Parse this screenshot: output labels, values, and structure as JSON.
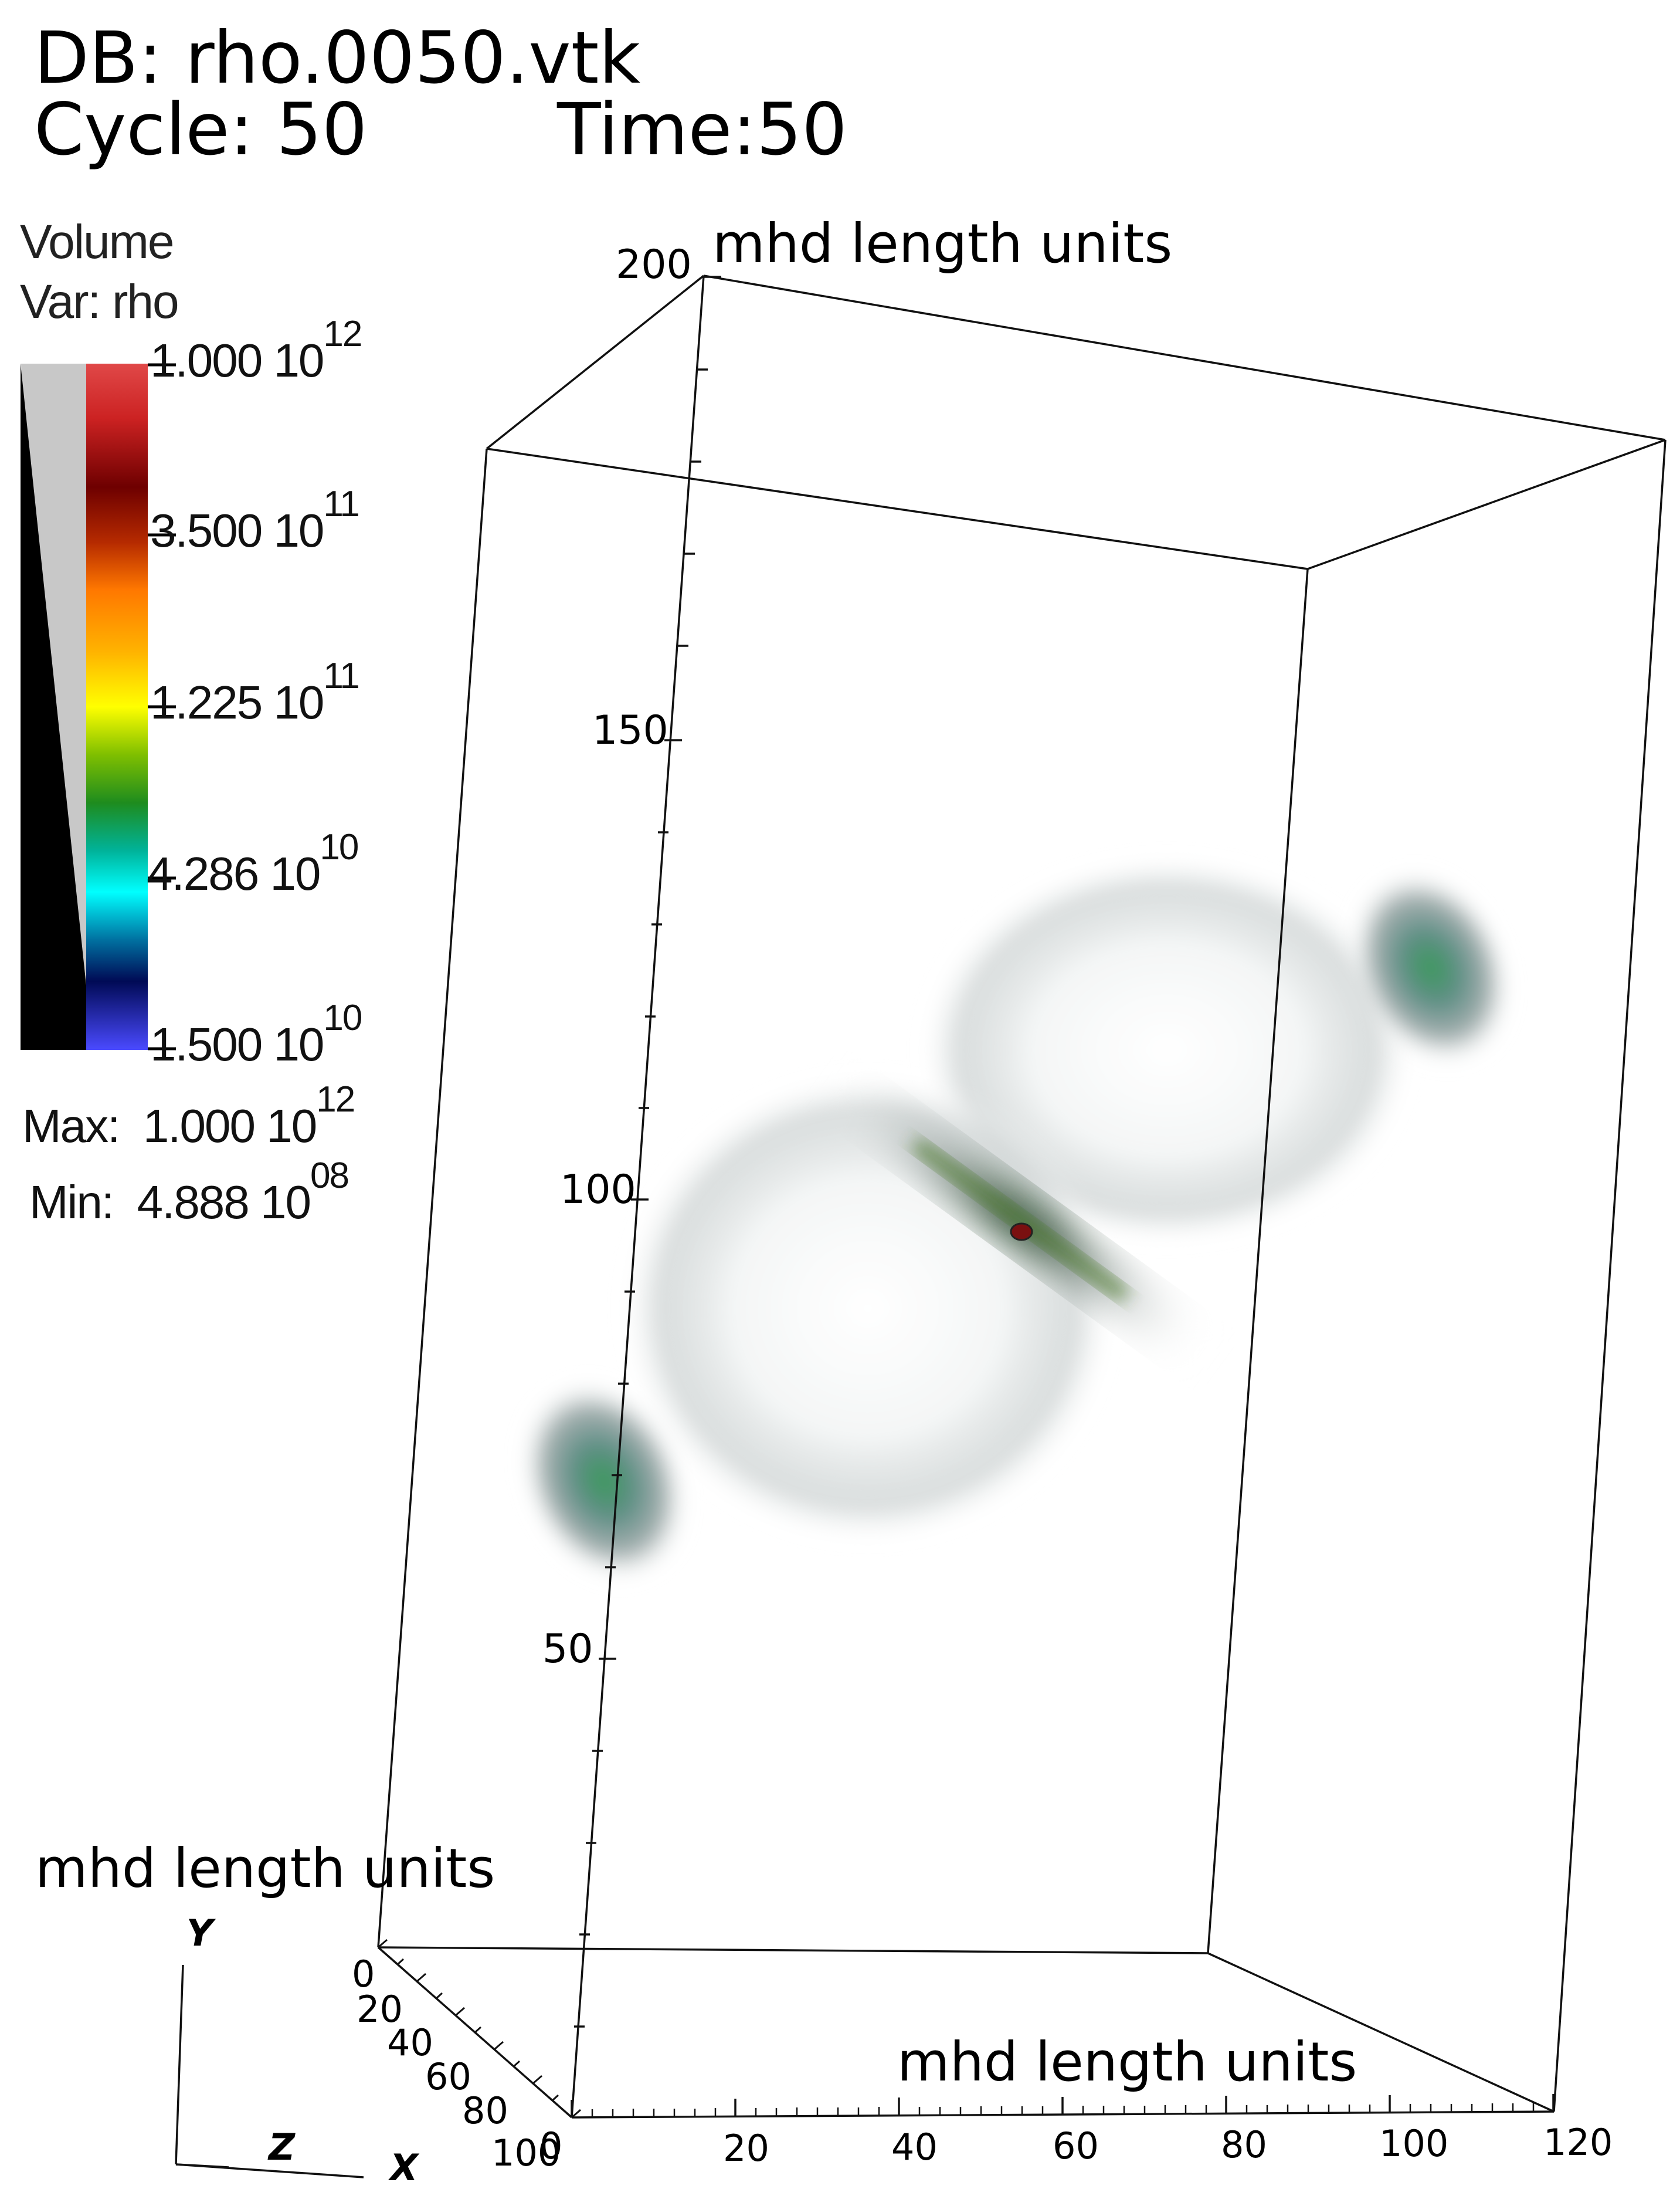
{
  "header": {
    "db_line": "DB: rho.0050.vtk",
    "cycle_label": "Cycle: 50",
    "time_label": "Time:50"
  },
  "legend": {
    "plot_type": "Volume",
    "var_label": "Var: rho",
    "ticks": [
      {
        "mant": "1.000",
        "base": "10",
        "exp": "12"
      },
      {
        "mant": "3.500",
        "base": "10",
        "exp": "11"
      },
      {
        "mant": "1.225",
        "base": "10",
        "exp": "11"
      },
      {
        "mant": "4.286",
        "base": "10",
        "exp": "10"
      },
      {
        "mant": "1.500",
        "base": "10",
        "exp": "10"
      }
    ],
    "max_label": "Max:",
    "max_mant": "1.000",
    "max_base": "10",
    "max_exp": "12",
    "min_label": "Min:",
    "min_mant": "4.888",
    "min_base": "10",
    "min_exp": "08",
    "colors": [
      "#ff3b3b",
      "#7a0000",
      "#ff7f00",
      "#ffff00",
      "#2e8b00",
      "#00ffff",
      "#001a66",
      "#4040ff"
    ]
  },
  "axes": {
    "y_title": "mhd length units",
    "z_title": "mhd length units",
    "x_title": "mhd length units",
    "y_ticks": [
      "200",
      "150",
      "100",
      "50"
    ],
    "z_ticks": [
      "0",
      "20",
      "40",
      "60",
      "80",
      "100"
    ],
    "x_ticks": [
      "0",
      "20",
      "40",
      "60",
      "80",
      "100",
      "120"
    ],
    "triad": {
      "y": "Y",
      "z": "Z",
      "x": "X"
    }
  }
}
